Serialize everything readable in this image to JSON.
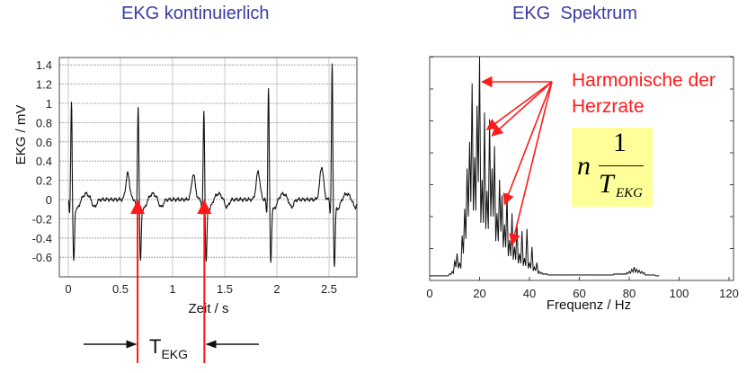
{
  "titles": {
    "left": "EKG kontinuierlich",
    "right": "EKG  Spektrum"
  },
  "annotation": {
    "line1": "Harmonische der",
    "line2": "Herzrate"
  },
  "formula": {
    "n": "n",
    "numerator": "1",
    "denominator": "T",
    "subscript": "EKG"
  },
  "period_label": {
    "main": "T",
    "sub": "EKG"
  },
  "colors": {
    "title": "#3b3ba6",
    "annotation": "#ff1a1a",
    "formula_bg": "#ffff99",
    "trace": "#111111"
  },
  "chart_data": [
    {
      "type": "line",
      "title": "EKG kontinuierlich",
      "xlabel": "Zeit / s",
      "ylabel": "EKG / mV",
      "xlim": [
        -0.08,
        2.77
      ],
      "ylim": [
        -0.7,
        1.45
      ],
      "xticks": [
        "0",
        "0.5",
        "1",
        "1.5",
        "2",
        "2.5"
      ],
      "xtick_values": [
        0,
        0.5,
        1,
        1.5,
        2,
        2.5
      ],
      "yticks": [
        "1.4",
        "1.2",
        "1",
        "0.8",
        "0.6",
        "0.4",
        "0.2",
        "0",
        "-0.2",
        "-0.4",
        "-0.6"
      ],
      "ytick_values": [
        1.4,
        1.2,
        1,
        0.8,
        0.6,
        0.4,
        0.2,
        0,
        -0.2,
        -0.4,
        -0.6
      ],
      "grid": true,
      "r_peaks": [
        {
          "t": 0.03,
          "r": 1.05,
          "s": -0.6,
          "p": 0
        },
        {
          "t": 0.67,
          "r": 1.0,
          "s": -0.6,
          "p": 0.27
        },
        {
          "t": 1.3,
          "r": 0.94,
          "s": -0.6,
          "p": 0.26
        },
        {
          "t": 1.92,
          "r": 1.18,
          "s": -0.6,
          "p": 0.29
        },
        {
          "t": 2.53,
          "r": 1.42,
          "s": -0.63,
          "p": 0.34
        }
      ],
      "period_markers_s": [
        0.66,
        1.3
      ]
    },
    {
      "type": "line",
      "title": "EKG  Spektrum",
      "xlabel": "Frequenz  / Hz",
      "ylabel": "",
      "xlim": [
        0,
        122
      ],
      "ylim": [
        0,
        1
      ],
      "xticks": [
        "0",
        "20",
        "40",
        "60",
        "80",
        "100",
        "120"
      ],
      "xtick_values": [
        0,
        20,
        40,
        60,
        80,
        100,
        120
      ],
      "yticks_unlabeled": 7,
      "grid": false,
      "frequency_hz_start": 0,
      "frequency_hz_step": 1,
      "values": [
        0.02,
        0.02,
        0.02,
        0.02,
        0.02,
        0.02,
        0.02,
        0.02,
        0.03,
        0.04,
        0.09,
        0.12,
        0.08,
        0.2,
        0.32,
        0.5,
        0.62,
        0.88,
        0.55,
        0.78,
        1.0,
        0.45,
        0.75,
        0.4,
        0.72,
        0.5,
        0.6,
        0.3,
        0.45,
        0.38,
        0.25,
        0.39,
        0.18,
        0.3,
        0.15,
        0.25,
        0.12,
        0.22,
        0.1,
        0.23,
        0.08,
        0.15,
        0.06,
        0.08,
        0.04,
        0.035,
        0.03,
        0.03,
        0.025,
        0.025,
        0.025,
        0.025,
        0.025,
        0.025,
        0.025,
        0.025,
        0.025,
        0.025,
        0.025,
        0.025,
        0.025,
        0.025,
        0.025,
        0.025,
        0.025,
        0.025,
        0.025,
        0.025,
        0.025,
        0.025,
        0.025,
        0.025,
        0.025,
        0.025,
        0.03,
        0.03,
        0.03,
        0.03,
        0.03,
        0.035,
        0.04,
        0.05,
        0.06,
        0.05,
        0.045,
        0.04,
        0.035,
        0.025,
        0.025,
        0.025,
        0.025,
        0.02,
        0.02
      ],
      "harmonics_hz": [
        20,
        22,
        24,
        29,
        32
      ]
    }
  ]
}
